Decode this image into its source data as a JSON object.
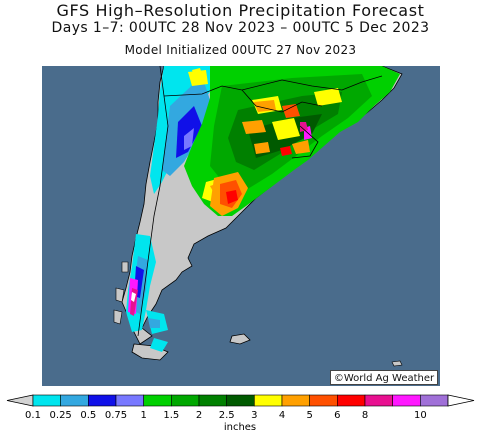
{
  "title": "GFS High–Resolution Precipitation Forecast",
  "subtitle": "Days 1–7: 00UTC 28 Nov 2023 – 00UTC 5 Dec 2023",
  "initialized": "Model Initialized 00UTC 27 Nov 2023",
  "credit": "©World Ag Weather",
  "colorbar": {
    "unit": "inches",
    "ticks": [
      "0.1",
      "0.25",
      "0.5",
      "0.75",
      "1",
      "1.5",
      "2",
      "2.5",
      "3",
      "4",
      "5",
      "6",
      "8",
      "10"
    ],
    "bins": [
      "#00e5ee",
      "#33a8e0",
      "#1010e8",
      "#7878ff",
      "#00d000",
      "#00a800",
      "#008000",
      "#005a00",
      "#ffff00",
      "#ffa000",
      "#ff5000",
      "#ff0000",
      "#e81090",
      "#ff18ff",
      "#a070d8"
    ],
    "under_color": "#d3d3d3",
    "over_color": "#ffffff"
  },
  "map_colors": {
    "ocean": "#4a6c8c",
    "land": "#c8c8c8",
    "border": "#000000"
  }
}
